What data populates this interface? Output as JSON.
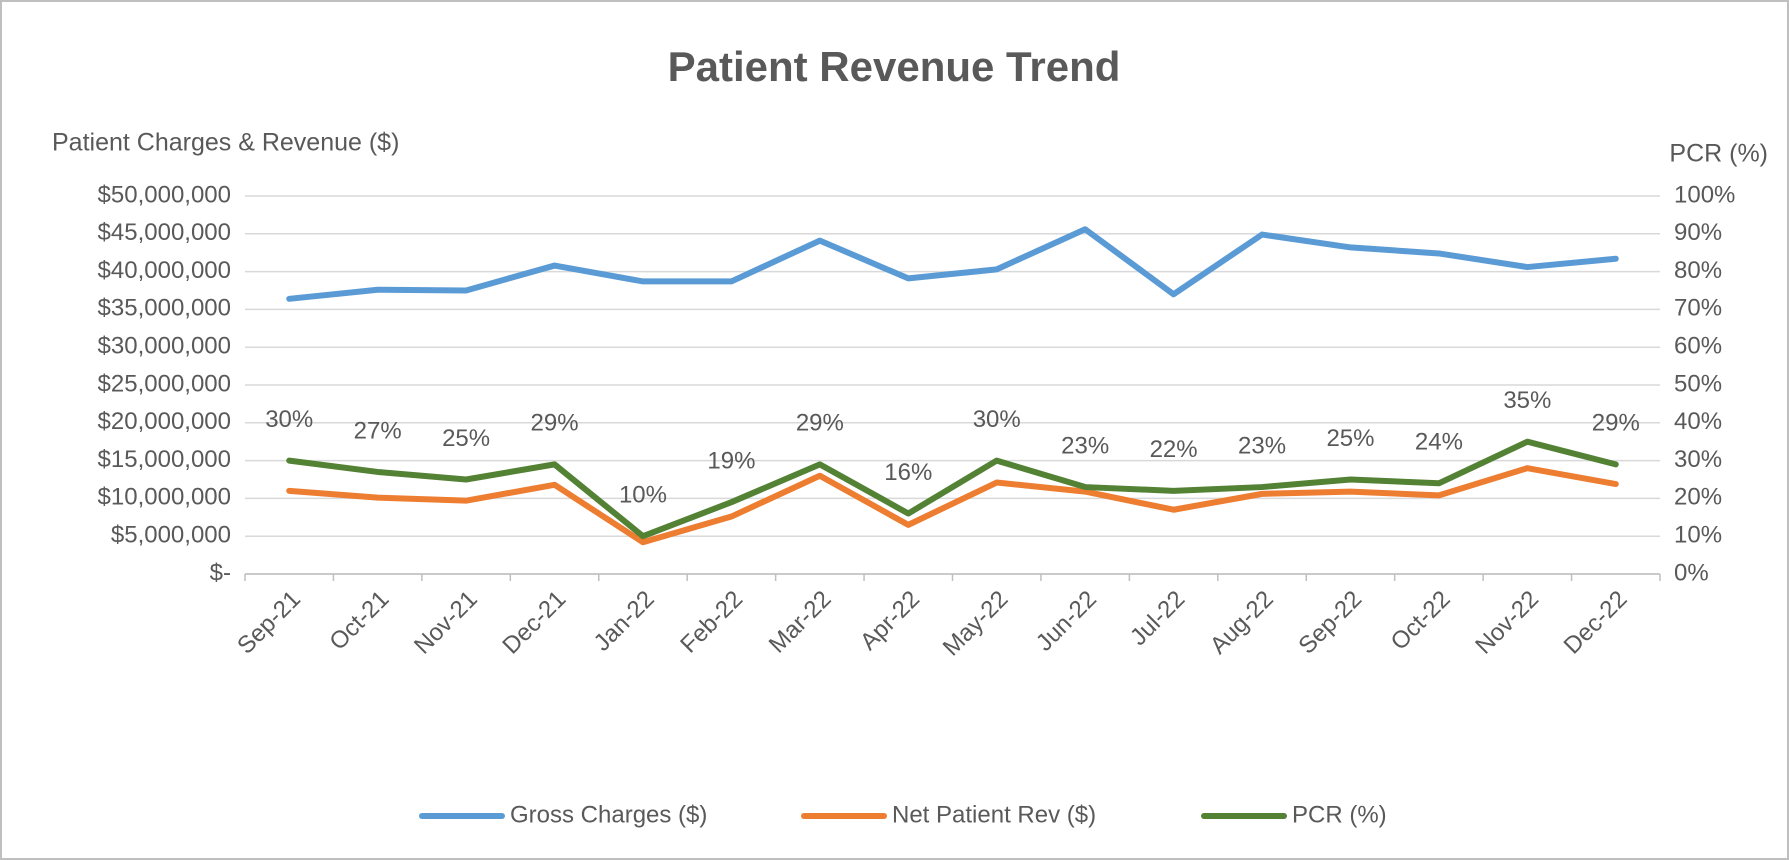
{
  "chart_data": {
    "type": "line",
    "title": "Patient Revenue Trend",
    "y_label": "Patient Charges & Revenue ($)",
    "y2_label": "PCR (%)",
    "categories": [
      "Sep-21",
      "Oct-21",
      "Nov-21",
      "Dec-21",
      "Jan-22",
      "Feb-22",
      "Mar-22",
      "Apr-22",
      "May-22",
      "Jun-22",
      "Jul-22",
      "Aug-22",
      "Sep-22",
      "Oct-22",
      "Nov-22",
      "Dec-22"
    ],
    "series": [
      {
        "name": "Gross Charges ($)",
        "color": "#5b9bd5",
        "values": [
          36400000,
          37600000,
          37500000,
          40800000,
          38700000,
          38700000,
          44100000,
          39100000,
          40300000,
          45600000,
          37000000,
          44900000,
          43200000,
          42400000,
          40600000,
          41700000
        ]
      },
      {
        "name": "Net Patient Rev ($)",
        "color": "#ed7d31",
        "values": [
          11000000,
          10100000,
          9700000,
          11800000,
          4200000,
          7600000,
          13000000,
          6500000,
          12100000,
          10900000,
          8500000,
          10600000,
          10900000,
          10400000,
          14000000,
          11900000
        ]
      },
      {
        "name": "PCR (%)",
        "color": "#548235",
        "axis": "y2",
        "values": [
          30,
          27,
          25,
          29,
          10,
          19,
          29,
          16,
          30,
          23,
          22,
          23,
          25,
          24,
          35,
          29
        ],
        "value_labels": [
          "30%",
          "27%",
          "25%",
          "29%",
          "10%",
          "19%",
          "29%",
          "16%",
          "30%",
          "23%",
          "22%",
          "23%",
          "25%",
          "24%",
          "35%",
          "29%"
        ]
      }
    ],
    "ylim": [
      0,
      50000000
    ],
    "yticks": [
      {
        "value": 0,
        "label": "$-"
      },
      {
        "value": 5000000,
        "label": "$5,000,000"
      },
      {
        "value": 10000000,
        "label": "$10,000,000"
      },
      {
        "value": 15000000,
        "label": "$15,000,000"
      },
      {
        "value": 20000000,
        "label": "$20,000,000"
      },
      {
        "value": 25000000,
        "label": "$25,000,000"
      },
      {
        "value": 30000000,
        "label": "$30,000,000"
      },
      {
        "value": 35000000,
        "label": "$35,000,000"
      },
      {
        "value": 40000000,
        "label": "$40,000,000"
      },
      {
        "value": 45000000,
        "label": "$45,000,000"
      },
      {
        "value": 50000000,
        "label": "$50,000,000"
      }
    ],
    "y2lim": [
      0,
      100
    ],
    "y2ticks": [
      {
        "value": 0,
        "label": "0%"
      },
      {
        "value": 10,
        "label": "10%"
      },
      {
        "value": 20,
        "label": "20%"
      },
      {
        "value": 30,
        "label": "30%"
      },
      {
        "value": 40,
        "label": "40%"
      },
      {
        "value": 50,
        "label": "50%"
      },
      {
        "value": 60,
        "label": "60%"
      },
      {
        "value": 70,
        "label": "70%"
      },
      {
        "value": 80,
        "label": "80%"
      },
      {
        "value": 90,
        "label": "90%"
      },
      {
        "value": 100,
        "label": "100%"
      }
    ],
    "grid": true,
    "legend": "bottom"
  }
}
